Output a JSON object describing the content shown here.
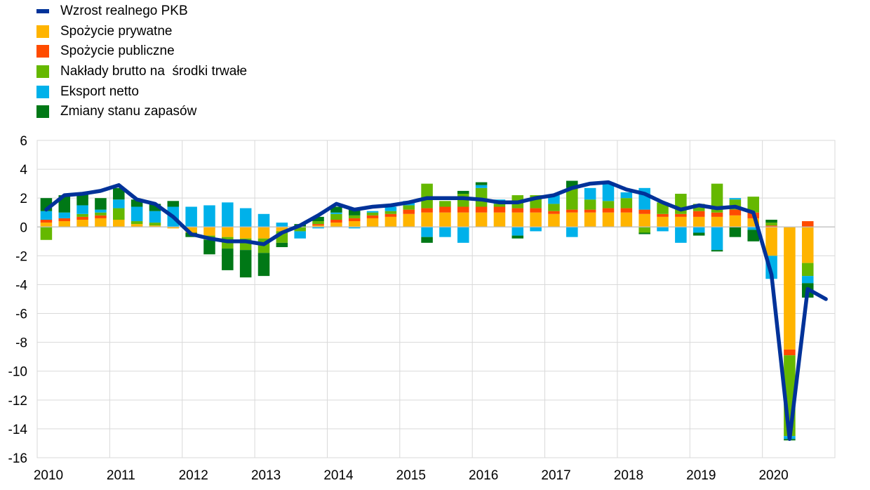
{
  "legend": [
    {
      "label": "Wzrost realnego PKB",
      "color": "#003299",
      "kind": "line"
    },
    {
      "label": "Spożycie prywatne",
      "color": "#FFB400",
      "kind": "box"
    },
    {
      "label": "Spożycie publiczne",
      "color": "#FF4B00",
      "kind": "box"
    },
    {
      "label": "Nakłady brutto na  środki trwałe",
      "color": "#65B800",
      "kind": "box"
    },
    {
      "label": "Eksport netto",
      "color": "#00B1EA",
      "kind": "box"
    },
    {
      "label": "Zmiany stanu zapasów",
      "color": "#007816",
      "kind": "box"
    }
  ],
  "chart_data": {
    "type": "bar",
    "stacked": true,
    "ylim": [
      -16,
      6
    ],
    "yticks": [
      6,
      4,
      2,
      0,
      -2,
      -4,
      -6,
      -8,
      -10,
      -12,
      -14,
      -16
    ],
    "year_labels": [
      "2010",
      "2011",
      "2012",
      "2013",
      "2014",
      "2015",
      "2016",
      "2017",
      "2018",
      "2019",
      "2020"
    ],
    "x": [
      "2010 Q1",
      "2010 Q2",
      "2010 Q3",
      "2010 Q4",
      "2011 Q1",
      "2011 Q2",
      "2011 Q3",
      "2011 Q4",
      "2012 Q1",
      "2012 Q2",
      "2012 Q3",
      "2012 Q4",
      "2013 Q1",
      "2013 Q2",
      "2013 Q3",
      "2013 Q4",
      "2014 Q1",
      "2014 Q2",
      "2014 Q3",
      "2014 Q4",
      "2015 Q1",
      "2015 Q2",
      "2015 Q3",
      "2015 Q4",
      "2016 Q1",
      "2016 Q2",
      "2016 Q3",
      "2016 Q4",
      "2017 Q1",
      "2017 Q2",
      "2017 Q3",
      "2017 Q4",
      "2018 Q1",
      "2018 Q2",
      "2018 Q3",
      "2018 Q4",
      "2019 Q1",
      "2019 Q2",
      "2019 Q3",
      "2019 Q4",
      "2020 Q1",
      "2020 Q2",
      "2020 Q3"
    ],
    "series": [
      {
        "name": "Spożycie prywatne",
        "color": "#FFB400",
        "values": [
          0.3,
          0.4,
          0.5,
          0.6,
          0.5,
          0.2,
          0.1,
          -0.1,
          -0.4,
          -0.6,
          -0.7,
          -0.8,
          -0.8,
          -0.3,
          0.0,
          0.1,
          0.3,
          0.4,
          0.6,
          0.7,
          0.9,
          1.0,
          1.0,
          1.0,
          1.0,
          1.0,
          1.0,
          1.0,
          0.9,
          1.0,
          1.0,
          1.0,
          1.0,
          0.9,
          0.7,
          0.7,
          0.7,
          0.7,
          0.8,
          0.6,
          -2.0,
          -8.5,
          -2.5
        ]
      },
      {
        "name": "Spożycie publiczne",
        "color": "#FF4B00",
        "values": [
          0.2,
          0.2,
          0.2,
          0.2,
          0.0,
          0.0,
          0.0,
          0.0,
          0.0,
          0.0,
          0.0,
          0.0,
          0.0,
          0.0,
          0.0,
          0.1,
          0.2,
          0.2,
          0.2,
          0.2,
          0.3,
          0.3,
          0.4,
          0.4,
          0.4,
          0.4,
          0.3,
          0.3,
          0.2,
          0.2,
          0.2,
          0.3,
          0.3,
          0.3,
          0.2,
          0.2,
          0.4,
          0.3,
          0.4,
          0.4,
          0.1,
          -0.4,
          0.4
        ]
      },
      {
        "name": "Nakłady brutto na  środki trwałe",
        "color": "#65B800",
        "values": [
          -0.9,
          0.0,
          0.2,
          0.2,
          0.8,
          0.2,
          0.2,
          0.0,
          0.0,
          -0.3,
          -0.8,
          -0.8,
          -1.0,
          -0.8,
          -0.3,
          0.2,
          0.4,
          0.2,
          0.2,
          0.2,
          0.3,
          1.7,
          0.4,
          0.9,
          1.3,
          0.2,
          0.9,
          0.9,
          0.5,
          1.5,
          0.7,
          0.5,
          0.7,
          -0.4,
          0.8,
          1.4,
          0.5,
          2.0,
          0.7,
          1.1,
          0.2,
          -5.6,
          -0.9
        ]
      },
      {
        "name": "Eksport netto",
        "color": "#00B1EA",
        "values": [
          0.6,
          0.4,
          0.6,
          0.2,
          0.6,
          1.0,
          0.8,
          1.4,
          1.4,
          1.5,
          1.7,
          1.3,
          0.9,
          0.3,
          -0.5,
          -0.1,
          0.1,
          -0.1,
          0.1,
          0.3,
          0.3,
          -0.7,
          -0.7,
          -1.1,
          0.2,
          0.3,
          -0.6,
          -0.3,
          0.6,
          -0.7,
          0.8,
          1.3,
          0.4,
          1.5,
          -0.3,
          -1.1,
          -0.4,
          -1.6,
          0.1,
          -0.2,
          -1.6,
          -0.2,
          -0.5
        ]
      },
      {
        "name": "Zmiany stanu zapasów",
        "color": "#007816",
        "values": [
          0.9,
          1.2,
          0.8,
          0.8,
          0.8,
          0.5,
          0.5,
          0.4,
          -0.3,
          -1.0,
          -1.5,
          -1.9,
          -1.6,
          -0.3,
          0.2,
          0.3,
          0.4,
          0.4,
          0.0,
          0.0,
          0.0,
          -0.4,
          0.0,
          0.2,
          0.2,
          0.0,
          -0.2,
          0.0,
          0.0,
          0.5,
          0.0,
          0.0,
          0.0,
          -0.1,
          0.0,
          0.0,
          -0.2,
          -0.1,
          -0.7,
          -0.8,
          0.2,
          -0.1,
          -1.0
        ]
      }
    ],
    "line": {
      "name": "Wzrost realnego PKB",
      "color": "#003299",
      "x": [
        0,
        1,
        2,
        3,
        4,
        5,
        6,
        7,
        8,
        9,
        10,
        11,
        12,
        13,
        14,
        15,
        16,
        17,
        18,
        19,
        20,
        21,
        22,
        23,
        24,
        25,
        26,
        27,
        28,
        29,
        30,
        31,
        32,
        33,
        34,
        35,
        36,
        37,
        38,
        39,
        40,
        41,
        42,
        43
      ],
      "values": [
        1.2,
        2.2,
        2.3,
        2.5,
        2.9,
        1.9,
        1.6,
        0.7,
        -0.5,
        -0.8,
        -1.0,
        -1.0,
        -1.2,
        -0.4,
        0.1,
        0.8,
        1.6,
        1.2,
        1.4,
        1.5,
        1.7,
        2.0,
        2.0,
        2.0,
        1.9,
        1.7,
        1.7,
        2.0,
        2.2,
        2.7,
        3.0,
        3.1,
        2.6,
        2.3,
        1.7,
        1.2,
        1.5,
        1.3,
        1.4,
        1.0,
        -3.3,
        -14.7,
        -4.3,
        -5.0
      ]
    }
  }
}
